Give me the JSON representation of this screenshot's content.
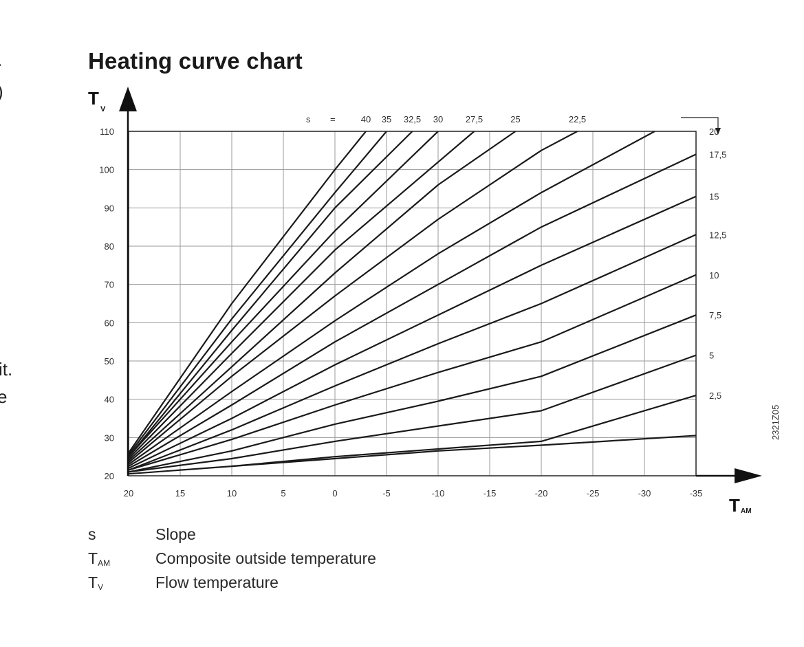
{
  "edge_text": [
    ".",
    ")",
    "it.",
    "e"
  ],
  "title": "Heating curve chart",
  "figure_code": "2321Z05",
  "chart_data": {
    "type": "line",
    "title": "Heating curve chart",
    "xlabel": "T",
    "xlabel_sub": "AM",
    "ylabel": "T",
    "ylabel_sub": "V",
    "xlim": [
      20,
      -35
    ],
    "ylim": [
      20,
      110
    ],
    "x_ticks": [
      "20",
      "15",
      "10",
      "5",
      "0",
      "-5",
      "-10",
      "-15",
      "-20",
      "-25",
      "-30",
      "-35"
    ],
    "y_ticks": [
      "110",
      "100",
      "90",
      "80",
      "70",
      "60",
      "50",
      "40",
      "30",
      "20"
    ],
    "grid": true,
    "slope_legend_prefix": [
      "s",
      "="
    ],
    "series": [
      {
        "name": "40",
        "label_pos": "top",
        "x": [
          20,
          10,
          0,
          -3
        ],
        "y": [
          26,
          65,
          100,
          110
        ]
      },
      {
        "name": "35",
        "label_pos": "top",
        "x": [
          20,
          10,
          0,
          -5
        ],
        "y": [
          25.5,
          61,
          94,
          110
        ]
      },
      {
        "name": "32,5",
        "label_pos": "top",
        "x": [
          20,
          10,
          0,
          -7.5
        ],
        "y": [
          25,
          58,
          90,
          110
        ]
      },
      {
        "name": "30",
        "label_pos": "top",
        "x": [
          20,
          10,
          0,
          -10
        ],
        "y": [
          25,
          55,
          84,
          110
        ]
      },
      {
        "name": "27,5",
        "label_pos": "top",
        "x": [
          20,
          10,
          0,
          -13.5
        ],
        "y": [
          24.5,
          52,
          79,
          110
        ]
      },
      {
        "name": "25",
        "label_pos": "top",
        "x": [
          20,
          10,
          0,
          -10,
          -17.5
        ],
        "y": [
          24,
          48.5,
          73,
          96,
          110
        ]
      },
      {
        "name": "22,5",
        "label_pos": "top",
        "x": [
          20,
          10,
          0,
          -10,
          -20,
          -23.5
        ],
        "y": [
          23.5,
          46,
          67,
          87,
          105,
          110
        ]
      },
      {
        "name": "20",
        "label_pos": "right",
        "x": [
          20,
          10,
          0,
          -10,
          -20,
          -31
        ],
        "y": [
          23,
          42,
          60.5,
          78,
          94,
          110
        ]
      },
      {
        "name": "17,5",
        "label_pos": "right",
        "x": [
          20,
          10,
          0,
          -10,
          -20,
          -35
        ],
        "y": [
          22.5,
          38.5,
          55,
          70,
          85,
          104
        ]
      },
      {
        "name": "15",
        "label_pos": "right",
        "x": [
          20,
          10,
          0,
          -10,
          -20,
          -35
        ],
        "y": [
          22,
          35,
          49,
          62,
          75,
          93
        ]
      },
      {
        "name": "12,5",
        "label_pos": "right",
        "x": [
          20,
          10,
          0,
          -10,
          -20,
          -35
        ],
        "y": [
          21.5,
          32,
          43.5,
          54.5,
          65,
          83
        ]
      },
      {
        "name": "10",
        "label_pos": "right",
        "x": [
          20,
          10,
          0,
          -10,
          -20,
          -35
        ],
        "y": [
          21.5,
          29.5,
          38.5,
          47,
          55,
          72.5
        ]
      },
      {
        "name": "7,5",
        "label_pos": "right",
        "x": [
          20,
          10,
          0,
          -10,
          -20,
          -35
        ],
        "y": [
          21,
          26.5,
          33.5,
          39.5,
          46,
          62
        ]
      },
      {
        "name": "5",
        "label_pos": "right",
        "x": [
          20,
          10,
          0,
          -10,
          -20,
          -35
        ],
        "y": [
          21,
          24.5,
          29,
          33,
          37,
          51.5
        ]
      },
      {
        "name": "2,5",
        "label_pos": "right",
        "x": [
          20,
          10,
          0,
          -10,
          -20,
          -35
        ],
        "y": [
          20.5,
          22.5,
          25,
          27,
          29,
          41
        ]
      },
      {
        "name": "",
        "label_pos": "none",
        "x": [
          10,
          0,
          -10,
          -20,
          -35
        ],
        "y": [
          22.5,
          24.5,
          26.5,
          28,
          30.5
        ]
      }
    ]
  },
  "legend": [
    {
      "symbol": "s",
      "sub": "",
      "text": "Slope"
    },
    {
      "symbol": "T",
      "sub": "AM",
      "text": "Composite outside temperature"
    },
    {
      "symbol": "T",
      "sub": "V",
      "text": "Flow temperature"
    }
  ]
}
